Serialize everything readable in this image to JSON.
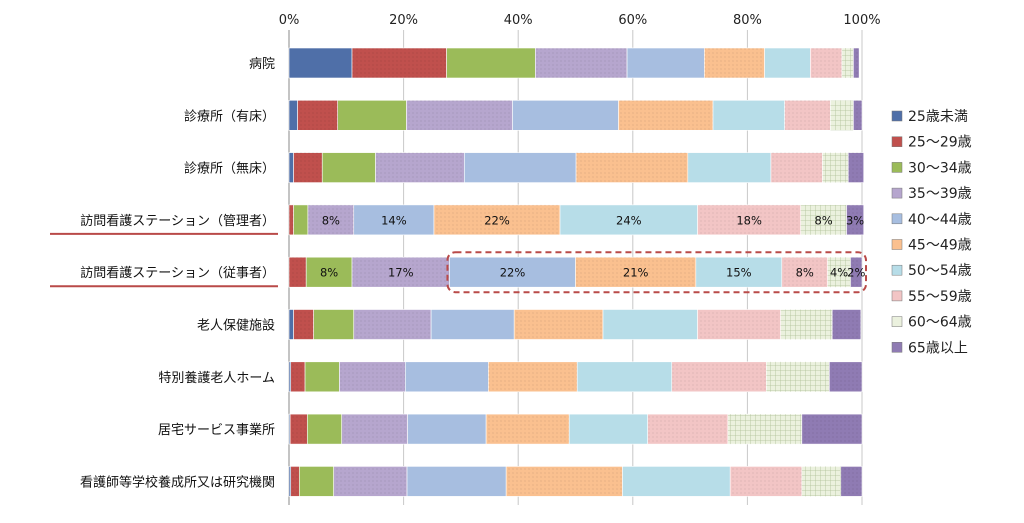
{
  "chart_data": {
    "type": "bar",
    "orientation": "horizontal",
    "stacked": "percent",
    "x_ticks": [
      "0%",
      "20%",
      "40%",
      "60%",
      "80%",
      "100%"
    ],
    "xlim": [
      0,
      100
    ],
    "legend_position": "right",
    "categories": [
      "病院",
      "診療所（有床）",
      "診療所（無床）",
      "訪問看護ステーション（管理者）",
      "訪問看護ステーション（従事者）",
      "老人保健施設",
      "特別養護老人ホーム",
      "居宅サービス事業所",
      "看護師等学校養成所又は研究機関"
    ],
    "series": [
      {
        "name": "25歳未満",
        "color": "#4F6FA8",
        "values": [
          11,
          1.5,
          0.8,
          0,
          0,
          0.8,
          0.3,
          0.2,
          0.3
        ]
      },
      {
        "name": "25～29歳",
        "color": "#C0504D",
        "values": [
          16.5,
          7,
          5,
          0.8,
          3,
          3.5,
          2.5,
          3,
          1.5
        ]
      },
      {
        "name": "30～34歳",
        "color": "#9BBB59",
        "values": [
          15.5,
          12,
          9.3,
          2.5,
          8,
          7,
          6,
          6,
          6
        ]
      },
      {
        "name": "35～39歳",
        "color": "#B6A6CE",
        "values": [
          16,
          18.5,
          15.5,
          8,
          17,
          13.5,
          11.5,
          11.5,
          12.8
        ]
      },
      {
        "name": "40～44歳",
        "color": "#A7BEE0",
        "values": [
          13.5,
          18.5,
          19.5,
          14,
          22,
          14.5,
          14.5,
          13.7,
          17.3
        ]
      },
      {
        "name": "45～49歳",
        "color": "#FAC08F",
        "values": [
          10.5,
          16.5,
          19.5,
          22,
          21,
          15.5,
          15.5,
          14.5,
          20.3
        ]
      },
      {
        "name": "50～54歳",
        "color": "#B7DDE8",
        "values": [
          8,
          12.5,
          14.5,
          24,
          15,
          16.5,
          16.5,
          13.7,
          18.8
        ]
      },
      {
        "name": "55～59歳",
        "color": "#F2C5C5",
        "values": [
          5.5,
          8,
          9,
          18,
          8,
          14.5,
          16.5,
          14,
          12.5
        ]
      },
      {
        "name": "60～64歳",
        "color": "#EBF1DE",
        "values": [
          2,
          4,
          4.5,
          8,
          4,
          9,
          11,
          12.9,
          6.8
        ]
      },
      {
        "name": "65歳以上",
        "color": "#8F7BB3",
        "values": [
          1,
          1.5,
          2.7,
          3,
          2,
          5,
          5.7,
          10.5,
          3.7
        ]
      }
    ],
    "data_labels": {
      "訪問看護ステーション（管理者）": [
        "",
        "",
        "",
        "8%",
        "14%",
        "22%",
        "24%",
        "18%",
        "8%",
        "3%"
      ],
      "訪問看護ステーション（従事者）": [
        "",
        "",
        "8%",
        "17%",
        "22%",
        "21%",
        "15%",
        "8%",
        "4%",
        "2%"
      ]
    },
    "underlined_categories": [
      3,
      4
    ],
    "highlight_box": {
      "category_index": 4,
      "from_series_index": 4,
      "color": "#B94A48"
    }
  }
}
